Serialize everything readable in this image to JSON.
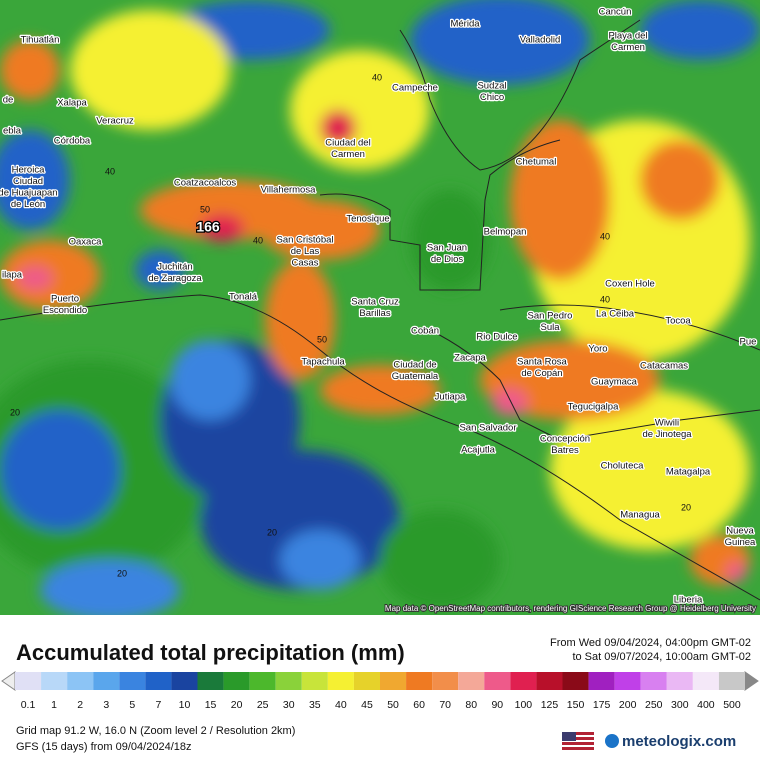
{
  "map": {
    "cities": [
      [
        "Tihuatlán"
      ],
      [
        "Mérida"
      ],
      [
        "Cancún"
      ],
      [
        "Valladolid"
      ],
      [
        "Playa del",
        "Carmen"
      ],
      [
        "de"
      ],
      [
        "Xalapa"
      ],
      [
        "Veracruz"
      ],
      [
        "ebla"
      ],
      [
        "Córdoba"
      ],
      [
        "Campeche"
      ],
      [
        "Sudzal",
        "Chico"
      ],
      [
        "Ciudad del",
        "Carmen"
      ],
      [
        "Heroica",
        "Ciudad",
        "de Huajuapan",
        "de León"
      ],
      [
        "Chetumal"
      ],
      [
        "Coatzacoalcos"
      ],
      [
        "Villahermosa"
      ],
      [
        "Tenosique"
      ],
      [
        "Belmopan"
      ],
      [
        "Oaxaca"
      ],
      [
        "San Cristóbal",
        "de Las",
        "Casas"
      ],
      [
        "San Juan",
        "de Dios"
      ],
      [
        "Juchitán",
        "de Zaragoza"
      ],
      [
        "ilapa"
      ],
      [
        "Coxen Hole"
      ],
      [
        "Puerto",
        "Escondido"
      ],
      [
        "Tonalá"
      ],
      [
        "Santa Cruz",
        "Barillas"
      ],
      [
        "San Pedro",
        "Sula"
      ],
      [
        "La Ceiba"
      ],
      [
        "Tocoa"
      ],
      [
        "Cobán"
      ],
      [
        "Rio Dulce"
      ],
      [
        "Pue"
      ],
      [
        "Tapachula"
      ],
      [
        "Zacapa"
      ],
      [
        "Yoro"
      ],
      [
        "Santa Rosa",
        "de Copán"
      ],
      [
        "Ciudad de",
        "Guatemala"
      ],
      [
        "Catacamas"
      ],
      [
        "Guaymaca"
      ],
      [
        "Jutiapa"
      ],
      [
        "Tegucigalpa"
      ],
      [
        "San Salvador"
      ],
      [
        "Wiwili",
        "de Jinotega"
      ],
      [
        "Concepción",
        "Batres"
      ],
      [
        "Acajutla"
      ],
      [
        "Choluteca"
      ],
      [
        "Matagalpa"
      ],
      [
        "Managua"
      ],
      [
        "Nueva",
        "Guinea"
      ],
      [
        "Liberia"
      ]
    ],
    "max_label": "166",
    "contour_labels": [
      "40",
      "40",
      "50",
      "40",
      "40",
      "50",
      "40",
      "20",
      "20",
      "20",
      "20"
    ],
    "attribution": "Map data © OpenStreetMap contributors, rendering GIScience Research Group @ Heidelberg University"
  },
  "footer": {
    "title": "Accumulated total precipitation (mm)",
    "from": "From Wed 09/04/2024, 04:00pm GMT-02",
    "to": "to Sat 09/07/2024, 10:00am GMT-02",
    "legend_values": [
      0.1,
      1,
      2,
      3,
      5,
      7,
      10,
      15,
      20,
      25,
      30,
      35,
      40,
      45,
      50,
      60,
      70,
      80,
      90,
      100,
      125,
      150,
      175,
      200,
      250,
      300,
      400,
      500
    ],
    "legend_colors": [
      "#e0e0f5",
      "#b8d8f8",
      "#8cc4f5",
      "#5aa6ec",
      "#3a84e0",
      "#2062c8",
      "#1a44a0",
      "#1a7a3a",
      "#2a9a2a",
      "#4cb82c",
      "#8ad23a",
      "#c8e43a",
      "#f5f032",
      "#e6d22a",
      "#f0a830",
      "#ef7a22",
      "#f28e4a",
      "#f4a898",
      "#ee5a8a",
      "#e02050",
      "#b8102a",
      "#8a0a18",
      "#a020c0",
      "#c040e8",
      "#d880f0",
      "#eab8f4",
      "#f4e8f8",
      "#c8c8c8"
    ],
    "grid_info": "Grid map 91.2 W, 16.0 N (Zoom level 2 / Resolution 2km)",
    "model_info": "GFS (15 days) from 09/04/2024/18z",
    "brand": "meteologix.com"
  }
}
